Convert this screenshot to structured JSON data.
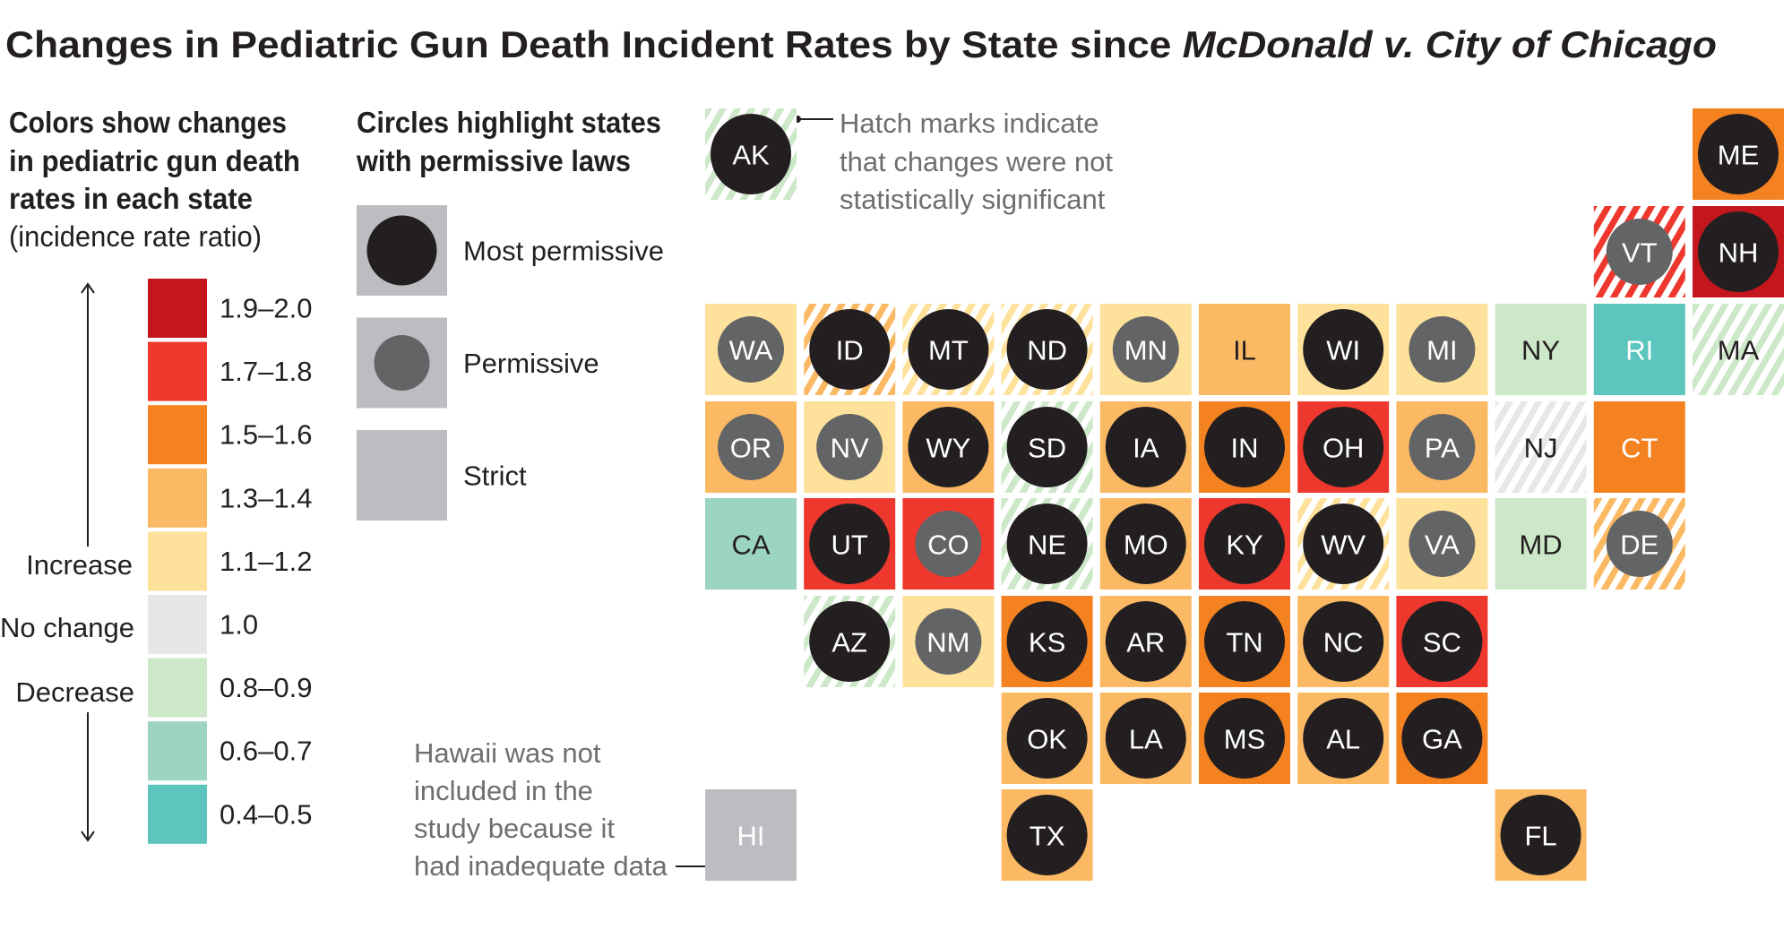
{
  "title": "Changes in Pediatric Gun Death Incident Rates by State since ",
  "title_case": "McDonald v. City of Chicago",
  "color_legend": {
    "heading": [
      "Colors show changes",
      "in pediatric gun death",
      "rates in each state"
    ],
    "subheading": "(incidence rate ratio)",
    "increase": "Increase",
    "no_change": "No change",
    "decrease": "Decrease",
    "bins": [
      {
        "label": "1.9–2.0",
        "color": "#c3161d"
      },
      {
        "label": "1.7–1.8",
        "color": "#ee372d"
      },
      {
        "label": "1.5–1.6",
        "color": "#f58220"
      },
      {
        "label": "1.3–1.4",
        "color": "#fbb964"
      },
      {
        "label": "1.1–1.2",
        "color": "#fee19b"
      },
      {
        "label": "1.0",
        "color": "#e6e7e8"
      },
      {
        "label": "0.8–0.9",
        "color": "#cde8c9"
      },
      {
        "label": "0.6–0.7",
        "color": "#9bd4bf"
      },
      {
        "label": "0.4–0.5",
        "color": "#5bc5be"
      }
    ]
  },
  "law_legend": {
    "heading": [
      "Circles highlight states",
      "with permissive laws"
    ],
    "items": [
      {
        "label": "Most permissive",
        "key": "most"
      },
      {
        "label": "Permissive",
        "key": "perm"
      },
      {
        "label": "Strict",
        "key": "strict"
      }
    ],
    "colors": {
      "tile": "#bcbdc0",
      "most": "#231f20",
      "perm": "#636466"
    }
  },
  "hatch_note": [
    "Hatch marks indicate",
    "that changes were not",
    "statistically significant"
  ],
  "hawaii_note": [
    "Hawaii was not",
    "included in the",
    "study because it",
    "had inadequate data"
  ],
  "chart_data": {
    "type": "tile-map",
    "states": [
      {
        "abbr": "AK",
        "change": "0.8–0.9",
        "law": "most",
        "not_significant": true
      },
      {
        "abbr": "ME",
        "change": "1.5–1.6",
        "law": "most",
        "not_significant": false
      },
      {
        "abbr": "VT",
        "change": "1.7–1.8",
        "law": "perm",
        "not_significant": true
      },
      {
        "abbr": "NH",
        "change": "1.9–2.0",
        "law": "most",
        "not_significant": false
      },
      {
        "abbr": "WA",
        "change": "1.1–1.2",
        "law": "perm",
        "not_significant": false
      },
      {
        "abbr": "ID",
        "change": "1.3–1.4",
        "law": "most",
        "not_significant": true
      },
      {
        "abbr": "MT",
        "change": "1.1–1.2",
        "law": "most",
        "not_significant": true
      },
      {
        "abbr": "ND",
        "change": "1.1–1.2",
        "law": "most",
        "not_significant": true
      },
      {
        "abbr": "MN",
        "change": "1.1–1.2",
        "law": "perm",
        "not_significant": false
      },
      {
        "abbr": "IL",
        "change": "1.3–1.4",
        "law": "strict",
        "not_significant": false
      },
      {
        "abbr": "WI",
        "change": "1.1–1.2",
        "law": "most",
        "not_significant": false
      },
      {
        "abbr": "MI",
        "change": "1.1–1.2",
        "law": "perm",
        "not_significant": false
      },
      {
        "abbr": "NY",
        "change": "0.8–0.9",
        "law": "strict",
        "not_significant": false
      },
      {
        "abbr": "RI",
        "change": "0.4–0.5",
        "law": "strict",
        "not_significant": false
      },
      {
        "abbr": "MA",
        "change": "0.8–0.9",
        "law": "strict",
        "not_significant": true
      },
      {
        "abbr": "OR",
        "change": "1.3–1.4",
        "law": "perm",
        "not_significant": false
      },
      {
        "abbr": "NV",
        "change": "1.1–1.2",
        "law": "perm",
        "not_significant": false
      },
      {
        "abbr": "WY",
        "change": "1.3–1.4",
        "law": "most",
        "not_significant": false
      },
      {
        "abbr": "SD",
        "change": "0.8–0.9",
        "law": "most",
        "not_significant": true
      },
      {
        "abbr": "IA",
        "change": "1.3–1.4",
        "law": "most",
        "not_significant": false
      },
      {
        "abbr": "IN",
        "change": "1.5–1.6",
        "law": "most",
        "not_significant": false
      },
      {
        "abbr": "OH",
        "change": "1.7–1.8",
        "law": "most",
        "not_significant": false
      },
      {
        "abbr": "PA",
        "change": "1.3–1.4",
        "law": "perm",
        "not_significant": false
      },
      {
        "abbr": "NJ",
        "change": "1.0",
        "law": "strict",
        "not_significant": true
      },
      {
        "abbr": "CT",
        "change": "1.5–1.6",
        "law": "strict",
        "not_significant": false
      },
      {
        "abbr": "CA",
        "change": "0.6–0.7",
        "law": "strict",
        "not_significant": false
      },
      {
        "abbr": "UT",
        "change": "1.7–1.8",
        "law": "most",
        "not_significant": false
      },
      {
        "abbr": "CO",
        "change": "1.7–1.8",
        "law": "perm",
        "not_significant": false
      },
      {
        "abbr": "NE",
        "change": "0.8–0.9",
        "law": "most",
        "not_significant": true
      },
      {
        "abbr": "MO",
        "change": "1.3–1.4",
        "law": "most",
        "not_significant": false
      },
      {
        "abbr": "KY",
        "change": "1.7–1.8",
        "law": "most",
        "not_significant": false
      },
      {
        "abbr": "WV",
        "change": "1.1–1.2",
        "law": "most",
        "not_significant": true
      },
      {
        "abbr": "VA",
        "change": "1.1–1.2",
        "law": "perm",
        "not_significant": false
      },
      {
        "abbr": "MD",
        "change": "0.8–0.9",
        "law": "strict",
        "not_significant": false
      },
      {
        "abbr": "DE",
        "change": "1.3–1.4",
        "law": "perm",
        "not_significant": true
      },
      {
        "abbr": "AZ",
        "change": "0.8–0.9",
        "law": "most",
        "not_significant": true
      },
      {
        "abbr": "NM",
        "change": "1.1–1.2",
        "law": "perm",
        "not_significant": false
      },
      {
        "abbr": "KS",
        "change": "1.5–1.6",
        "law": "most",
        "not_significant": false
      },
      {
        "abbr": "AR",
        "change": "1.3–1.4",
        "law": "most",
        "not_significant": false
      },
      {
        "abbr": "TN",
        "change": "1.5–1.6",
        "law": "most",
        "not_significant": false
      },
      {
        "abbr": "NC",
        "change": "1.3–1.4",
        "law": "most",
        "not_significant": false
      },
      {
        "abbr": "SC",
        "change": "1.7–1.8",
        "law": "most",
        "not_significant": false
      },
      {
        "abbr": "OK",
        "change": "1.3–1.4",
        "law": "most",
        "not_significant": false
      },
      {
        "abbr": "LA",
        "change": "1.3–1.4",
        "law": "most",
        "not_significant": false
      },
      {
        "abbr": "MS",
        "change": "1.5–1.6",
        "law": "most",
        "not_significant": false
      },
      {
        "abbr": "AL",
        "change": "1.3–1.4",
        "law": "most",
        "not_significant": false
      },
      {
        "abbr": "GA",
        "change": "1.5–1.6",
        "law": "most",
        "not_significant": false
      },
      {
        "abbr": "HI",
        "change": null,
        "law": "no data",
        "not_significant": false
      },
      {
        "abbr": "TX",
        "change": "1.3–1.4",
        "law": "most",
        "not_significant": false
      },
      {
        "abbr": "FL",
        "change": "1.3–1.4",
        "law": "most",
        "not_significant": false
      }
    ]
  }
}
